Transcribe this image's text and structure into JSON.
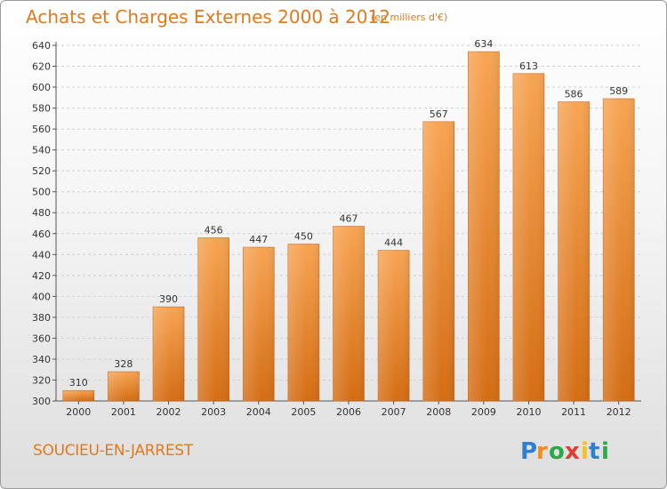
{
  "header": {
    "title": "Achats et Charges Externes 2000 à 2012",
    "subtitle": "(en milliers d'€)"
  },
  "footer": {
    "commune": "SOUCIEU-EN-JARREST",
    "brand": "Proxiti"
  },
  "colors": {
    "accent": "#e07a1e",
    "bar_top": "#f7a453",
    "bar_bottom": "#d46d14",
    "grid": "#cfcfcf"
  },
  "chart_data": {
    "type": "bar",
    "title": "Achats et Charges Externes 2000 à 2012",
    "subtitle": "(en milliers d'€)",
    "xlabel": "",
    "ylabel": "",
    "categories": [
      "2000",
      "2001",
      "2002",
      "2003",
      "2004",
      "2005",
      "2006",
      "2007",
      "2008",
      "2009",
      "2010",
      "2011",
      "2012"
    ],
    "values": [
      310,
      328,
      390,
      456,
      447,
      450,
      467,
      444,
      567,
      634,
      613,
      586,
      589
    ],
    "ylim": [
      300,
      640
    ],
    "yticks": [
      300,
      320,
      340,
      360,
      380,
      400,
      420,
      440,
      460,
      480,
      500,
      520,
      540,
      560,
      580,
      600,
      620,
      640
    ],
    "grid": true,
    "data_labels": true
  }
}
